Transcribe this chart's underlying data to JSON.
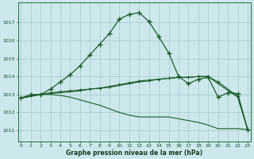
{
  "title": "Graphe pression niveau de la mer (hPa)",
  "background_color": "#cce8ec",
  "grid_color": "#aaccd4",
  "line_color_main": "#1a5c28",
  "line_color_flat": "#1a5c28",
  "ylabel_ticks": [
    1011,
    1012,
    1013,
    1014,
    1015,
    1016,
    1017
  ],
  "xticks": [
    0,
    1,
    2,
    3,
    4,
    5,
    6,
    7,
    8,
    9,
    10,
    11,
    12,
    13,
    14,
    15,
    16,
    17,
    18,
    19,
    20,
    21,
    22,
    23
  ],
  "ylim": [
    1010.4,
    1018.1
  ],
  "xlim": [
    -0.3,
    23.3
  ],
  "series1_x": [
    0,
    1,
    2,
    3,
    4,
    5,
    6,
    7,
    8,
    9,
    10,
    11,
    12,
    13,
    14,
    15,
    16,
    17,
    18,
    19,
    20,
    21,
    22,
    23
  ],
  "series1_y": [
    1012.8,
    1013.0,
    1013.0,
    1013.3,
    1013.7,
    1014.1,
    1014.6,
    1015.2,
    1015.8,
    1016.4,
    1017.2,
    1017.45,
    1017.55,
    1017.05,
    1016.2,
    1015.3,
    1014.0,
    1013.6,
    1013.85,
    1013.95,
    1012.85,
    1013.1,
    1013.05,
    1011.05
  ],
  "series2_x": [
    0,
    2,
    3,
    4,
    5,
    6,
    7,
    8,
    9,
    10,
    11,
    12,
    13,
    14,
    15,
    16,
    17,
    18,
    19,
    20,
    22,
    23
  ],
  "series2_y": [
    1012.8,
    1013.0,
    1013.05,
    1013.1,
    1013.15,
    1013.2,
    1013.3,
    1013.35,
    1013.4,
    1013.5,
    1013.6,
    1013.7,
    1013.75,
    1013.85,
    1013.9,
    1013.95,
    1013.95,
    1014.0,
    1014.0,
    1013.6,
    1012.85,
    1011.05
  ],
  "series3_x": [
    0,
    2,
    3,
    4,
    5,
    6,
    7,
    8,
    9,
    10,
    11,
    12,
    13,
    14,
    15,
    16,
    17,
    18,
    19,
    20,
    22,
    23
  ],
  "series3_y": [
    1012.8,
    1013.0,
    1013.1,
    1013.15,
    1013.2,
    1013.25,
    1013.3,
    1013.35,
    1013.45,
    1013.55,
    1013.65,
    1013.75,
    1013.8,
    1013.85,
    1013.9,
    1013.95,
    1013.95,
    1014.0,
    1014.0,
    1013.7,
    1012.9,
    1011.05
  ],
  "series4_x": [
    0,
    2,
    3,
    4,
    5,
    6,
    7,
    8,
    9,
    10,
    11,
    12,
    13,
    14,
    15,
    16,
    17,
    18,
    19,
    20,
    22,
    23
  ],
  "series4_y": [
    1012.8,
    1013.0,
    1013.0,
    1012.95,
    1012.85,
    1012.7,
    1012.55,
    1012.4,
    1012.2,
    1012.0,
    1011.85,
    1011.75,
    1011.75,
    1011.75,
    1011.75,
    1011.65,
    1011.55,
    1011.45,
    1011.3,
    1011.1,
    1011.1,
    1011.05
  ]
}
